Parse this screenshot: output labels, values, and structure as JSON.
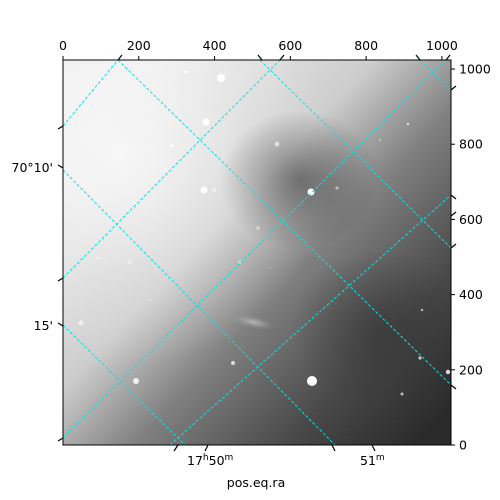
{
  "chart_data": {
    "type": "image",
    "xlabel": "pos.eq.ra",
    "ylabel": "",
    "pixel_axes": {
      "x_range": [
        0,
        1024
      ],
      "y_range": [
        0,
        1024
      ],
      "top_ticks": [
        0,
        200,
        400,
        600,
        800,
        1000
      ],
      "right_ticks": [
        0,
        200,
        400,
        600,
        800,
        1000
      ]
    },
    "world_axes": {
      "ra_ticks": [
        {
          "label": "17h50m",
          "hour": "17",
          "hour_unit": "h",
          "min": "50",
          "min_unit": "m"
        },
        {
          "label": "51m",
          "min": "51",
          "min_unit": "m"
        }
      ],
      "dec_ticks": [
        "70°10'",
        "15'"
      ]
    },
    "grid": true,
    "colors": {
      "grid": "#00e5e5",
      "background_bright": "#f2f2f2",
      "background_dark": "#262626",
      "frame": "#000000"
    },
    "colormap": "gray"
  }
}
